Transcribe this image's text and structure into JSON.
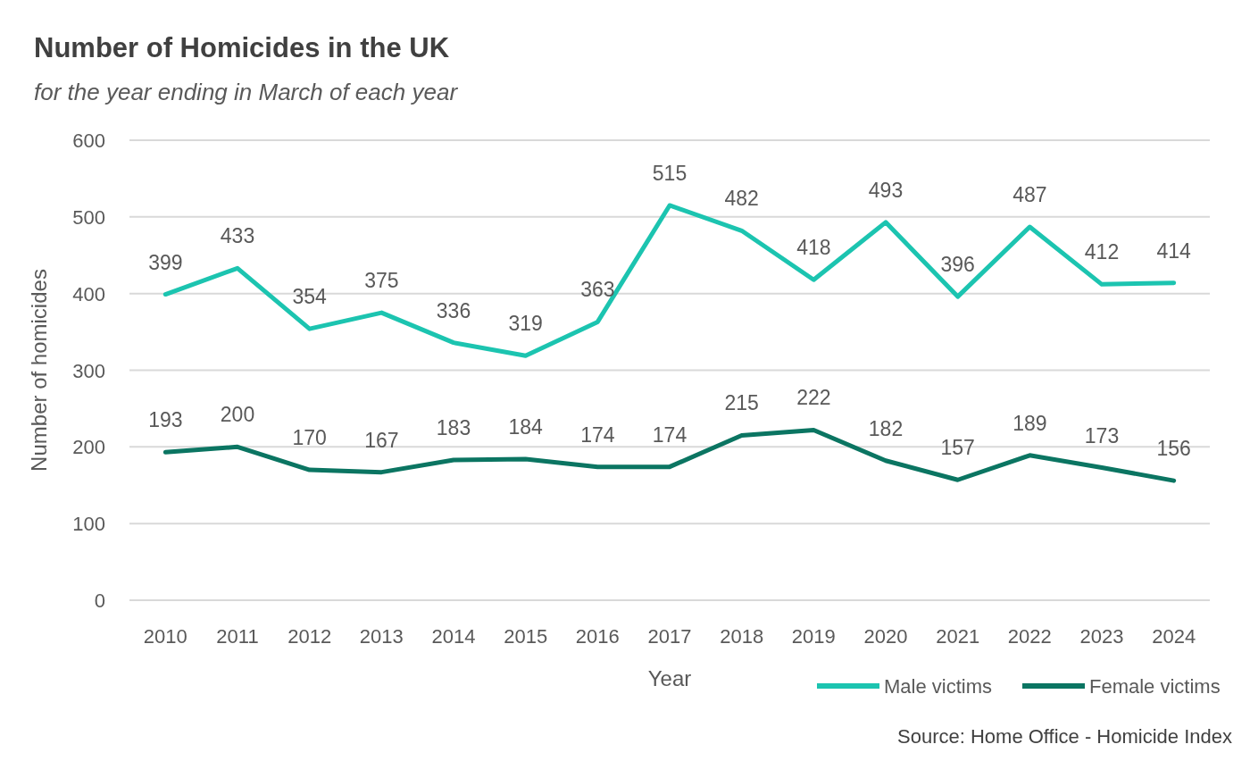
{
  "chart_data": {
    "type": "line",
    "title": "Number of Homicides in the UK",
    "subtitle": "for the year ending in March of each year",
    "xlabel": "Year",
    "ylabel": "Number of homicides",
    "categories": [
      "2010",
      "2011",
      "2012",
      "2013",
      "2014",
      "2015",
      "2016",
      "2017",
      "2018",
      "2019",
      "2020",
      "2021",
      "2022",
      "2023",
      "2024"
    ],
    "series": [
      {
        "name": "Male victims",
        "color": "#1cc4b0",
        "values": [
          399,
          433,
          354,
          375,
          336,
          319,
          363,
          515,
          482,
          418,
          493,
          396,
          487,
          412,
          414
        ]
      },
      {
        "name": "Female victims",
        "color": "#0b7562",
        "values": [
          193,
          200,
          170,
          167,
          183,
          184,
          174,
          174,
          215,
          222,
          182,
          157,
          189,
          173,
          156
        ]
      }
    ],
    "ylim": [
      0,
      600
    ],
    "yticks": [
      0,
      100,
      200,
      300,
      400,
      500,
      600
    ],
    "grid": "y",
    "legend": "bottom right",
    "data_labels": true,
    "marker": "none",
    "line_style": "solid",
    "annotations": [
      "Source: Home Office - Homicide Index"
    ]
  }
}
